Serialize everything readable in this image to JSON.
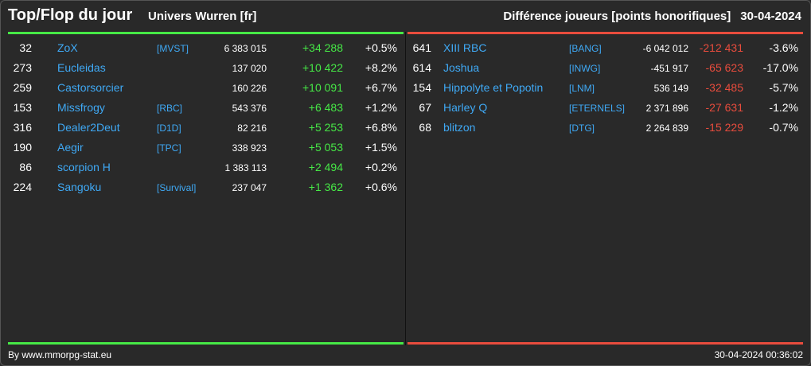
{
  "header": {
    "title": "Top/Flop du jour",
    "universe": "Univers Wurren [fr]",
    "metric": "Différence joueurs [points honorifiques]",
    "date": "30-04-2024"
  },
  "colors": {
    "positive": "#46e846",
    "negative": "#e84c3d",
    "link": "#3fa9f5",
    "background": "#292929"
  },
  "top": [
    {
      "rank": "32",
      "name": "ZoX",
      "alliance": "[MVST]",
      "points": "6 383 015",
      "diff": "+34 288",
      "pct": "+0.5%"
    },
    {
      "rank": "273",
      "name": "Eucleidas",
      "alliance": "",
      "points": "137 020",
      "diff": "+10 422",
      "pct": "+8.2%"
    },
    {
      "rank": "259",
      "name": "Castorsorcier",
      "alliance": "",
      "points": "160 226",
      "diff": "+10 091",
      "pct": "+6.7%"
    },
    {
      "rank": "153",
      "name": "Missfrogy",
      "alliance": "[RBC]",
      "points": "543 376",
      "diff": "+6 483",
      "pct": "+1.2%"
    },
    {
      "rank": "316",
      "name": "Dealer2Deut",
      "alliance": "[D1D]",
      "points": "82 216",
      "diff": "+5 253",
      "pct": "+6.8%"
    },
    {
      "rank": "190",
      "name": "Aegir",
      "alliance": "[TPC]",
      "points": "338 923",
      "diff": "+5 053",
      "pct": "+1.5%"
    },
    {
      "rank": "86",
      "name": "scorpion H",
      "alliance": "",
      "points": "1 383 113",
      "diff": "+2 494",
      "pct": "+0.2%"
    },
    {
      "rank": "224",
      "name": "Sangoku",
      "alliance": "[Survival]",
      "points": "237 047",
      "diff": "+1 362",
      "pct": "+0.6%"
    }
  ],
  "flop": [
    {
      "rank": "641",
      "name": "XIII RBC",
      "alliance": "[BANG]",
      "points": "-6 042 012",
      "diff": "-212 431",
      "pct": "-3.6%"
    },
    {
      "rank": "614",
      "name": "Joshua",
      "alliance": "[INWG]",
      "points": "-451 917",
      "diff": "-65 623",
      "pct": "-17.0%"
    },
    {
      "rank": "154",
      "name": "Hippolyte et Popotin",
      "alliance": "[LNM]",
      "points": "536 149",
      "diff": "-32 485",
      "pct": "-5.7%"
    },
    {
      "rank": "67",
      "name": "Harley Q",
      "alliance": "[ETERNELS]",
      "points": "2 371 896",
      "diff": "-27 631",
      "pct": "-1.2%"
    },
    {
      "rank": "68",
      "name": "blitzon",
      "alliance": "[DTG]",
      "points": "2 264 839",
      "diff": "-15 229",
      "pct": "-0.7%"
    }
  ],
  "footer": {
    "source": "By www.mmorpg-stat.eu",
    "timestamp": "30-04-2024 00:36:02"
  }
}
